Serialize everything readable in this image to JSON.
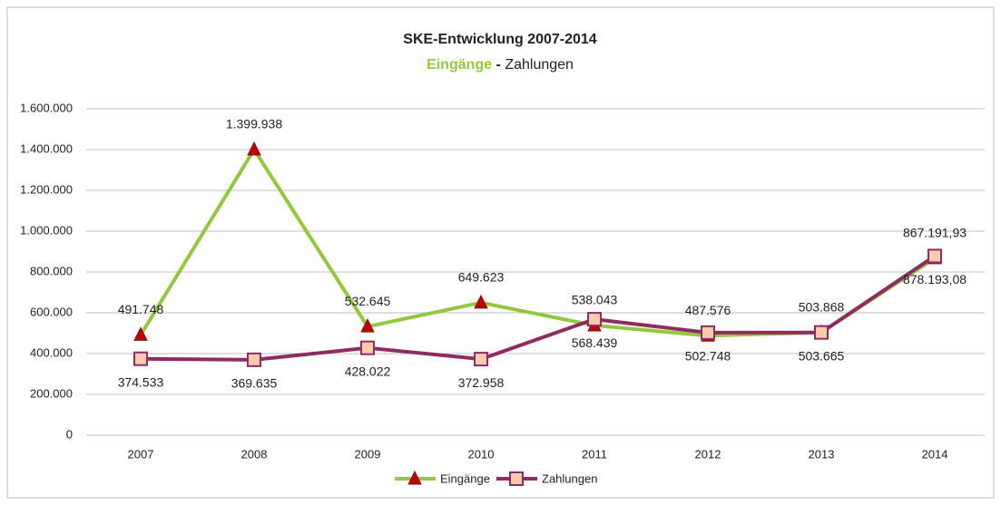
{
  "chart_data": {
    "type": "line",
    "title": "SKE-Entwicklung 2007-2014",
    "subtitle": [
      "Eingänge",
      "-",
      "Zahlungen"
    ],
    "categories": [
      "2007",
      "2008",
      "2009",
      "2010",
      "2011",
      "2012",
      "2013",
      "2014"
    ],
    "series": [
      {
        "name": "Eingänge",
        "color": "#92c83e",
        "marker": "triangle",
        "marker_color": "#c00000",
        "values": [
          491748,
          1399938,
          532645,
          649623,
          538043,
          487576,
          503868,
          867191.93
        ],
        "value_labels": [
          "491.748",
          "1.399.938",
          "532.645",
          "649.623",
          "538.043",
          "487.576",
          "503.868",
          "867.191,93"
        ]
      },
      {
        "name": "Zahlungen",
        "color": "#8e2c62",
        "marker": "square",
        "marker_color": "#f8cbad",
        "values": [
          374533,
          369635,
          428022,
          372958,
          568439,
          502748,
          503665,
          878193.08
        ],
        "value_labels": [
          "374.533",
          "369.635",
          "428.022",
          "372.958",
          "568.439",
          "502.748",
          "503.665",
          "878.193,08"
        ]
      }
    ],
    "ylim": [
      0,
      1600000
    ],
    "yticks": [
      0,
      {
        "value": 200000,
        "label": "200.000"
      },
      {
        "value": 400000,
        "label": "400.000"
      },
      {
        "value": 600000,
        "label": "600.000"
      },
      {
        "value": 800000,
        "label": "800.000"
      },
      {
        "value": 1000000,
        "label": "1.000.000"
      },
      {
        "value": 1200000,
        "label": "1.200.000"
      },
      {
        "value": 1400000,
        "label": "1.400.000"
      },
      {
        "value": 1600000,
        "label": "1.600.000"
      }
    ],
    "grid": true,
    "legend": "bottom"
  }
}
